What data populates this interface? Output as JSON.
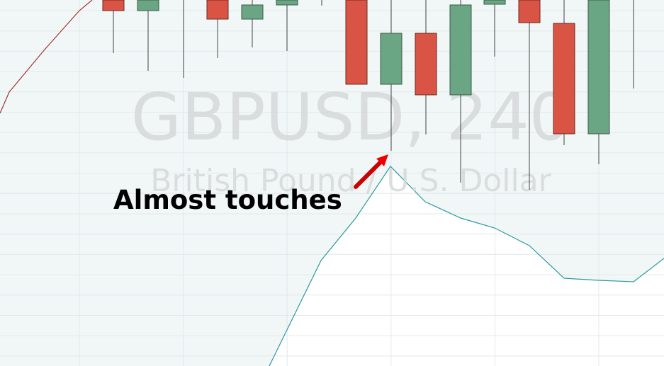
{
  "watermark": {
    "symbol": "GBPUSD, 240",
    "description": "British Pound / U.S. Dollar"
  },
  "annotation": {
    "text": "Almost touches"
  }
}
